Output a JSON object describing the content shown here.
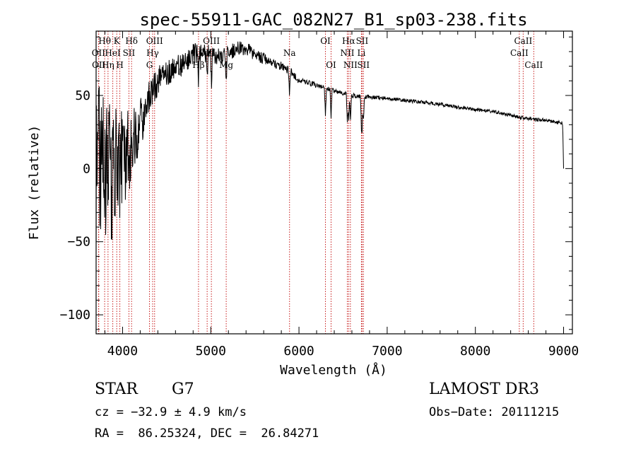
{
  "chart_data": {
    "type": "line",
    "title": "spec-55911-GAC_082N27_B1_sp03-238.fits",
    "xlabel": "Wavelength (Å)",
    "ylabel": "Flux (relative)",
    "xlim": [
      3700,
      9100
    ],
    "ylim": [
      -113,
      94
    ],
    "xticks": [
      4000,
      5000,
      6000,
      7000,
      8000,
      9000
    ],
    "yticks": [
      -100,
      -50,
      0,
      50
    ],
    "ytick_labels": [
      "−100",
      "−50",
      "0",
      "50"
    ],
    "spectrum_anchor_points": {
      "x": [
        3700,
        3800,
        3900,
        4000,
        4100,
        4200,
        4300,
        4400,
        4500,
        4600,
        4700,
        4800,
        4900,
        5000,
        5100,
        5200,
        5300,
        5400,
        5500,
        5600,
        5700,
        5800,
        5900,
        6000,
        6200,
        6400,
        6600,
        6800,
        7000,
        7300,
        7600,
        7900,
        8200,
        8500,
        8800,
        8990,
        9000
      ],
      "y": [
        0,
        -5,
        -2,
        5,
        15,
        30,
        50,
        60,
        65,
        70,
        72,
        78,
        80,
        78,
        76,
        78,
        83,
        82,
        78,
        75,
        72,
        70,
        67,
        60,
        57,
        53,
        50,
        49,
        48,
        46,
        44,
        41,
        39,
        35,
        33,
        31,
        0
      ],
      "noise_amplitude": [
        60,
        55,
        45,
        35,
        25,
        18,
        12,
        10,
        9,
        8,
        8,
        8,
        7,
        7,
        6,
        6,
        5,
        5,
        4,
        4,
        3,
        3,
        3,
        2,
        2,
        1.5,
        1.5,
        1.5,
        1.2,
        1.2,
        1.2,
        1.2,
        1.2,
        1.2,
        1.2,
        1.2,
        0
      ]
    },
    "spectral_lines": [
      {
        "name": "Hθ",
        "wavelength": 3797,
        "row": 0
      },
      {
        "name": "OII",
        "wavelength": 3727,
        "row": 1
      },
      {
        "name": "OII",
        "wavelength": 3730,
        "row": 2
      },
      {
        "name": "K",
        "wavelength": 3934,
        "row": 0
      },
      {
        "name": "HeI",
        "wavelength": 3889,
        "row": 1
      },
      {
        "name": "Hη",
        "wavelength": 3835,
        "row": 2
      },
      {
        "name": "Hδ",
        "wavelength": 4102,
        "row": 0
      },
      {
        "name": "SII",
        "wavelength": 4072,
        "row": 1
      },
      {
        "name": "H",
        "wavelength": 3969,
        "row": 2
      },
      {
        "name": "OIII",
        "wavelength": 4363,
        "row": 0
      },
      {
        "name": "Hγ",
        "wavelength": 4341,
        "row": 1
      },
      {
        "name": "G",
        "wavelength": 4305,
        "row": 2
      },
      {
        "name": "OIII",
        "wavelength": 5007,
        "row": 0
      },
      {
        "name": "OIII",
        "wavelength": 4959,
        "row": 1
      },
      {
        "name": "Hβ",
        "wavelength": 4861,
        "row": 2
      },
      {
        "name": "Mg",
        "wavelength": 5175,
        "row": 2
      },
      {
        "name": "Na",
        "wavelength": 5893,
        "row": 1
      },
      {
        "name": "OI",
        "wavelength": 6300,
        "row": 0
      },
      {
        "name": "OI",
        "wavelength": 6364,
        "row": 2
      },
      {
        "name": "Hα",
        "wavelength": 6563,
        "row": 0
      },
      {
        "name": "NII",
        "wavelength": 6548,
        "row": 1
      },
      {
        "name": "NII",
        "wavelength": 6583,
        "row": 2
      },
      {
        "name": "SII",
        "wavelength": 6716,
        "row": 0
      },
      {
        "name": "Li",
        "wavelength": 6708,
        "row": 1
      },
      {
        "name": "SII",
        "wavelength": 6731,
        "row": 2
      },
      {
        "name": "CaII",
        "wavelength": 8542,
        "row": 0
      },
      {
        "name": "CaII",
        "wavelength": 8498,
        "row": 1
      },
      {
        "name": "CaII",
        "wavelength": 8662,
        "row": 2
      }
    ]
  },
  "info": {
    "class": "STAR",
    "subclass": "G7",
    "survey": "LAMOST DR3",
    "cz": "cz = −32.9 ± 4.9 km/s",
    "obs_date": "Obs−Date: 20111215",
    "radec": "RA =  86.25324, DEC =  26.84271"
  },
  "colors": {
    "spectrum": "#000000",
    "lines": "#c81e1e",
    "frame": "#000000"
  }
}
